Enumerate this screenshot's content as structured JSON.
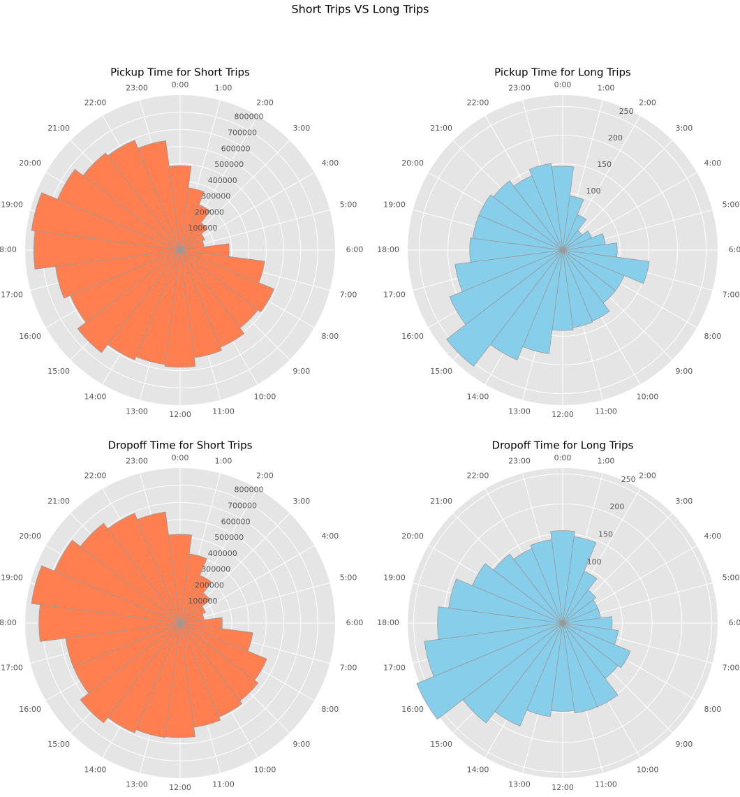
{
  "title": "Short Trips VS Long Trips",
  "chart_data": [
    {
      "type": "polar",
      "title": "Pickup Time for Short Trips",
      "color": "#ff7f50",
      "categories": [
        "0:00",
        "1:00",
        "2:00",
        "3:00",
        "4:00",
        "5:00",
        "6:00",
        "7:00",
        "8:00",
        "9:00",
        "10:00",
        "11:00",
        "12:00",
        "13:00",
        "14:00",
        "15:00",
        "16:00",
        "17:00",
        "18:00",
        "19:00",
        "20:00",
        "21:00",
        "22:00",
        "23:00"
      ],
      "values": [
        490000,
        365000,
        285000,
        200000,
        155000,
        140000,
        285000,
        495000,
        590000,
        570000,
        610000,
        630000,
        680000,
        670000,
        690000,
        750000,
        690000,
        730000,
        850000,
        870000,
        770000,
        710000,
        690000,
        640000
      ],
      "ylim": [
        0,
        900000
      ],
      "yticks": [
        100000,
        200000,
        300000,
        400000,
        500000,
        600000,
        700000,
        800000
      ]
    },
    {
      "type": "polar",
      "title": "Pickup Time for Long Trips",
      "color": "#87ceeb",
      "categories": [
        "0:00",
        "1:00",
        "2:00",
        "3:00",
        "4:00",
        "5:00",
        "6:00",
        "7:00",
        "8:00",
        "9:00",
        "10:00",
        "11:00",
        "12:00",
        "13:00",
        "14:00",
        "15:00",
        "16:00",
        "17:00",
        "18:00",
        "19:00",
        "20:00",
        "21:00",
        "22:00",
        "23:00"
      ],
      "values": [
        146,
        95,
        67,
        43,
        55,
        75,
        95,
        152,
        116,
        116,
        134,
        136,
        140,
        182,
        207,
        255,
        213,
        189,
        162,
        158,
        158,
        152,
        140,
        152
      ],
      "ylim": [
        0,
        270
      ],
      "yticks": [
        100,
        150,
        200,
        250
      ]
    },
    {
      "type": "polar",
      "title": "Dropoff Time for Short Trips",
      "color": "#ff7f50",
      "categories": [
        "0:00",
        "1:00",
        "2:00",
        "3:00",
        "4:00",
        "5:00",
        "6:00",
        "7:00",
        "8:00",
        "9:00",
        "10:00",
        "11:00",
        "12:00",
        "13:00",
        "14:00",
        "15:00",
        "16:00",
        "17:00",
        "18:00",
        "19:00",
        "20:00",
        "21:00",
        "22:00",
        "23:00"
      ],
      "values": [
        515000,
        405000,
        300000,
        220000,
        160000,
        140000,
        245000,
        425000,
        545000,
        570000,
        590000,
        610000,
        665000,
        670000,
        690000,
        730000,
        670000,
        670000,
        820000,
        870000,
        790000,
        730000,
        690000,
        650000
      ],
      "ylim": [
        0,
        900000
      ],
      "yticks": [
        100000,
        200000,
        300000,
        400000,
        500000,
        600000,
        700000,
        800000
      ]
    },
    {
      "type": "polar",
      "title": "Dropoff Time for Long Trips",
      "color": "#87ceeb",
      "categories": [
        "0:00",
        "1:00",
        "2:00",
        "3:00",
        "4:00",
        "5:00",
        "6:00",
        "7:00",
        "8:00",
        "9:00",
        "10:00",
        "11:00",
        "12:00",
        "13:00",
        "14:00",
        "15:00",
        "16:00",
        "17:00",
        "18:00",
        "19:00",
        "20:00",
        "21:00",
        "22:00",
        "23:00"
      ],
      "values": [
        155,
        146,
        94,
        70,
        64,
        64,
        83,
        94,
        123,
        117,
        152,
        152,
        148,
        158,
        187,
        211,
        265,
        234,
        210,
        193,
        164,
        146,
        135,
        141
      ],
      "ylim": [
        0,
        260
      ],
      "yticks": [
        100,
        150,
        200,
        250
      ]
    }
  ]
}
